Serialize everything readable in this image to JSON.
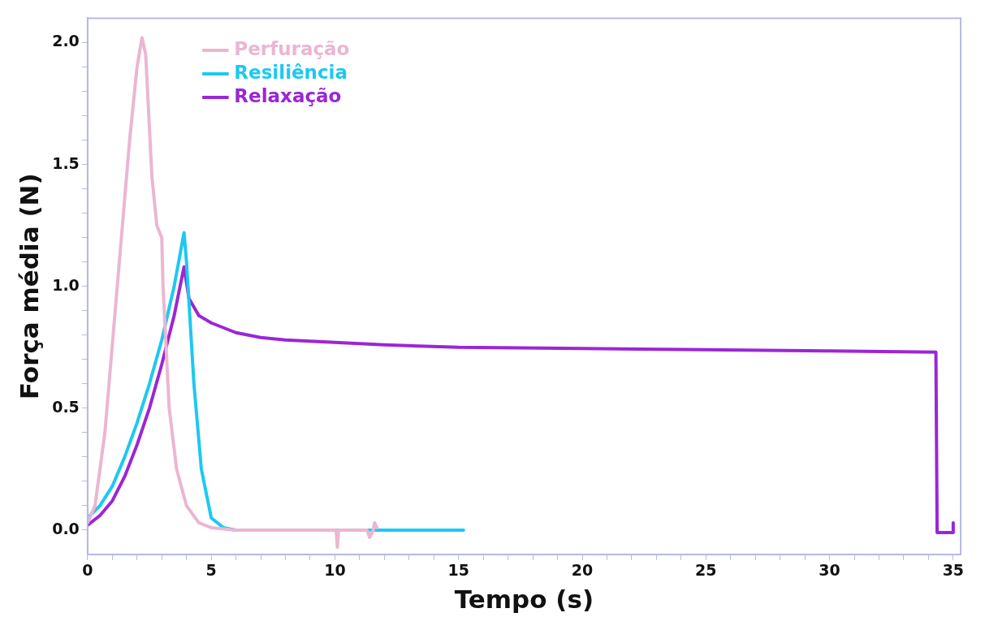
{
  "chart_data": {
    "type": "line",
    "xlabel": "Tempo (s)",
    "ylabel": "Força média (N)",
    "xlim": [
      0,
      35.3
    ],
    "ylim": [
      -0.1,
      2.1
    ],
    "xticks": [
      0,
      {
        "value": 1,
        "label": null
      },
      {
        "value": 2,
        "label": null
      },
      {
        "value": 3,
        "label": null
      },
      {
        "value": 4,
        "label": null
      },
      5,
      {
        "value": 6,
        "label": null
      },
      {
        "value": 7,
        "label": null
      },
      {
        "value": 8,
        "label": null
      },
      {
        "value": 9,
        "label": null
      },
      10,
      {
        "value": 11,
        "label": null
      },
      {
        "value": 12,
        "label": null
      },
      {
        "value": 13,
        "label": null
      },
      {
        "value": 14,
        "label": null
      },
      15,
      {
        "value": 16,
        "label": null
      },
      {
        "value": 17,
        "label": null
      },
      {
        "value": 18,
        "label": null
      },
      {
        "value": 19,
        "label": null
      },
      20,
      {
        "value": 21,
        "label": null
      },
      {
        "value": 22,
        "label": null
      },
      {
        "value": 23,
        "label": null
      },
      {
        "value": 24,
        "label": null
      },
      25,
      {
        "value": 26,
        "label": null
      },
      {
        "value": 27,
        "label": null
      },
      {
        "value": 28,
        "label": null
      },
      {
        "value": 29,
        "label": null
      },
      30,
      {
        "value": 31,
        "label": null
      },
      {
        "value": 32,
        "label": null
      },
      {
        "value": 33,
        "label": null
      },
      {
        "value": 34,
        "label": null
      },
      35
    ],
    "yticks": [
      {
        "value": 0,
        "label": "0.0"
      },
      {
        "value": 0.1,
        "label": null
      },
      {
        "value": 0.2,
        "label": null
      },
      {
        "value": 0.3,
        "label": null
      },
      {
        "value": 0.4,
        "label": null
      },
      {
        "value": 0.5,
        "label": "0.5"
      },
      {
        "value": 0.6,
        "label": null
      },
      {
        "value": 0.7,
        "label": null
      },
      {
        "value": 0.8,
        "label": null
      },
      {
        "value": 0.9,
        "label": null
      },
      {
        "value": 1,
        "label": "1.0"
      },
      {
        "value": 1.1,
        "label": null
      },
      {
        "value": 1.2,
        "label": null
      },
      {
        "value": 1.3,
        "label": null
      },
      {
        "value": 1.4,
        "label": null
      },
      {
        "value": 1.5,
        "label": "1.5"
      },
      {
        "value": 1.6,
        "label": null
      },
      {
        "value": 1.7,
        "label": null
      },
      {
        "value": 1.8,
        "label": null
      },
      {
        "value": 1.9,
        "label": null
      },
      {
        "value": 2,
        "label": "2.0"
      }
    ],
    "grid": false,
    "legend": "top left",
    "marker": "none",
    "line_style": "solid",
    "series": [
      {
        "name": "Perfuração",
        "color": "#ebb6d2",
        "x": [
          0,
          0.3,
          0.7,
          1.2,
          1.7,
          2.0,
          2.2,
          2.35,
          2.6,
          2.8,
          3.0,
          3.05,
          3.3,
          3.6,
          4.0,
          4.5,
          5,
          6,
          10.05,
          10.1,
          10.15,
          11.3,
          11.4,
          11.55,
          11.6,
          11.7
        ],
        "values": [
          0.03,
          0.1,
          0.4,
          1.0,
          1.6,
          1.9,
          2.02,
          1.95,
          1.45,
          1.25,
          1.2,
          1.0,
          0.5,
          0.25,
          0.1,
          0.03,
          0.01,
          0,
          0,
          -0.07,
          0,
          0,
          -0.03,
          0,
          0.03,
          0.01
        ]
      },
      {
        "name": "Resiliência",
        "color": "#1ec8f0",
        "x": [
          0,
          0.5,
          1,
          1.5,
          2,
          2.5,
          3,
          3.5,
          3.9,
          4.0,
          4.3,
          4.6,
          5,
          5.5,
          6,
          15.2
        ],
        "values": [
          0.05,
          0.1,
          0.18,
          0.3,
          0.44,
          0.6,
          0.78,
          1.0,
          1.22,
          1.1,
          0.6,
          0.25,
          0.05,
          0.01,
          0,
          0
        ]
      },
      {
        "name": "Relaxação",
        "color": "#9b26d6",
        "x": [
          0,
          0.5,
          1,
          1.5,
          2,
          2.5,
          3,
          3.5,
          3.9,
          4.1,
          4.5,
          5,
          6,
          7,
          8,
          10,
          12,
          15,
          20,
          25,
          30,
          34.3,
          34.35,
          34.4,
          35.0,
          35.0
        ],
        "values": [
          0.02,
          0.06,
          0.12,
          0.22,
          0.35,
          0.5,
          0.68,
          0.88,
          1.08,
          0.95,
          0.88,
          0.85,
          0.81,
          0.79,
          0.78,
          0.77,
          0.76,
          0.75,
          0.745,
          0.74,
          0.735,
          0.73,
          -0.01,
          -0.01,
          -0.01,
          0.03
        ]
      }
    ]
  }
}
